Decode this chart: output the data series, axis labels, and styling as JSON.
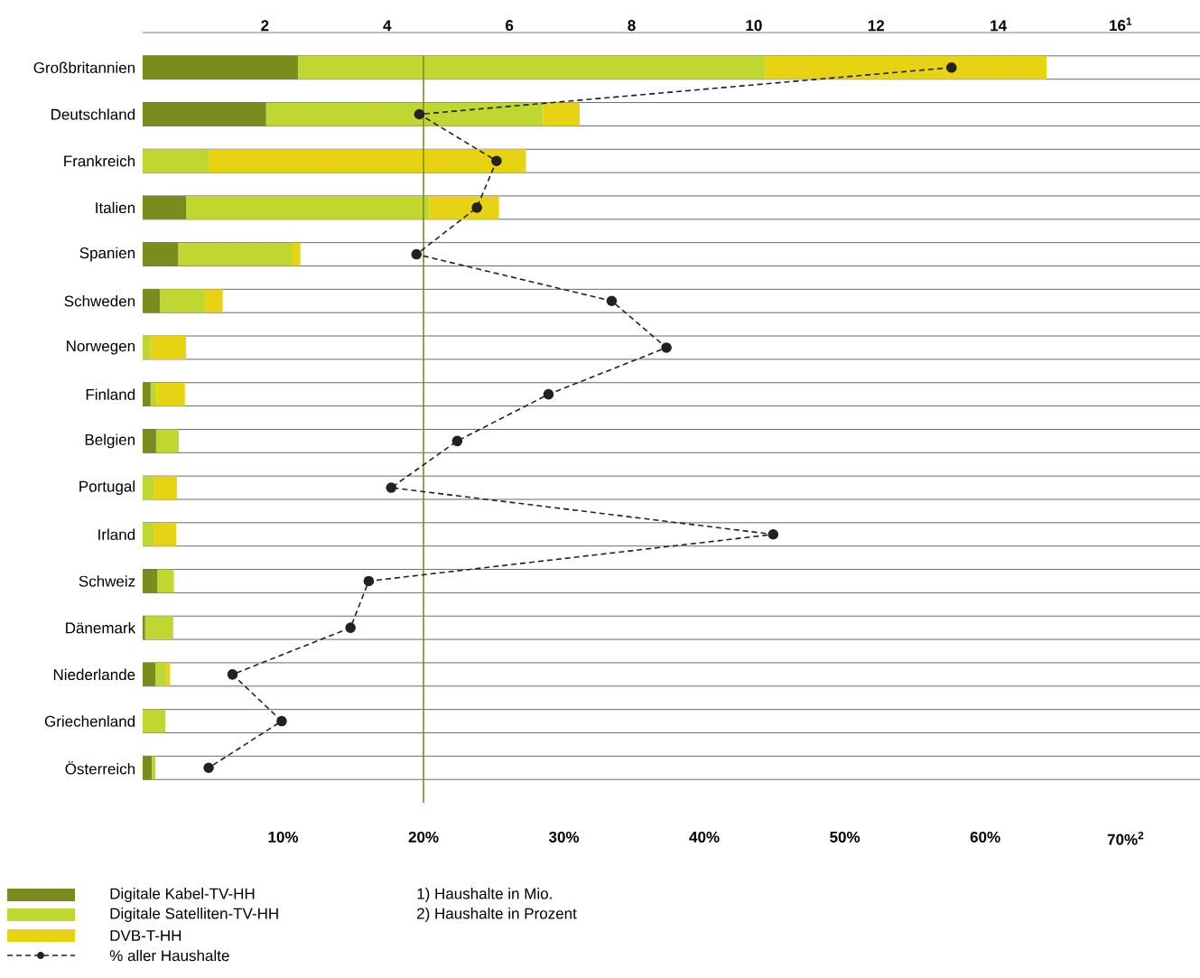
{
  "chart_data": {
    "type": "bar",
    "orientation": "horizontal",
    "stacked": true,
    "categories": [
      "Großbritannien",
      "Deutschland",
      "Frankreich",
      "Italien",
      "Spanien",
      "Schweden",
      "Norwegen",
      "Finland",
      "Belgien",
      "Portugal",
      "Irland",
      "Schweiz",
      "Dänemark",
      "Niederlande",
      "Griechenland",
      "Österreich"
    ],
    "series": [
      {
        "name": "Digitale Kabel-TV-HH",
        "color": "#7a8c1e",
        "axis": "x2",
        "values": [
          2.54,
          2.02,
          0,
          0.71,
          0.58,
          0.28,
          0,
          0.13,
          0.22,
          0,
          0,
          0.24,
          0.04,
          0.21,
          0,
          0.15
        ]
      },
      {
        "name": "Digitale Satelliten-TV-HH",
        "color": "#bfd730",
        "axis": "x2",
        "values": [
          7.65,
          4.53,
          1.09,
          3.98,
          1.87,
          0.74,
          0.13,
          0.1,
          0.37,
          0.18,
          0.18,
          0.27,
          0.46,
          0.18,
          0.37,
          0.06
        ]
      },
      {
        "name": "DVB-T-HH",
        "color": "#e8d214",
        "axis": "x2",
        "values": [
          4.6,
          0.6,
          5.18,
          1.14,
          0.13,
          0.29,
          0.58,
          0.46,
          0,
          0.38,
          0.37,
          0,
          0,
          0.06,
          0,
          0
        ]
      },
      {
        "name": "% aller Haushalte",
        "type": "line",
        "color": "#222222",
        "marker": "circle",
        "line_style": "dashed",
        "values": [
          57.6,
          19.7,
          25.2,
          23.8,
          19.5,
          33.4,
          37.3,
          28.9,
          22.4,
          17.7,
          44.9,
          16.1,
          14.8,
          6.4,
          9.9,
          4.7
        ]
      }
    ],
    "xlim": [
      0,
      75.3
    ],
    "xticks": [
      {
        "value": 10,
        "label": "10%"
      },
      {
        "value": 20,
        "label": "20%"
      },
      {
        "value": 30,
        "label": "30%"
      },
      {
        "value": 40,
        "label": "40%"
      },
      {
        "value": 50,
        "label": "50%"
      },
      {
        "value": 60,
        "label": "60%"
      },
      {
        "value": 70,
        "label": "70%$^{2}$"
      }
    ],
    "x2lim": [
      0,
      17.3
    ],
    "x2ticks": [
      2,
      4,
      6,
      8,
      10,
      12,
      14,
      {
        "value": 16,
        "label": "16$^{1}$"
      }
    ],
    "ref_lines": [
      {
        "axis": "x",
        "value": 20,
        "color": "#7a8c1e"
      }
    ],
    "grid": "y",
    "legend": "bottom left",
    "annotations": [
      "1) Haushalte in Mio.",
      "2) Haushalte in Prozent"
    ]
  }
}
